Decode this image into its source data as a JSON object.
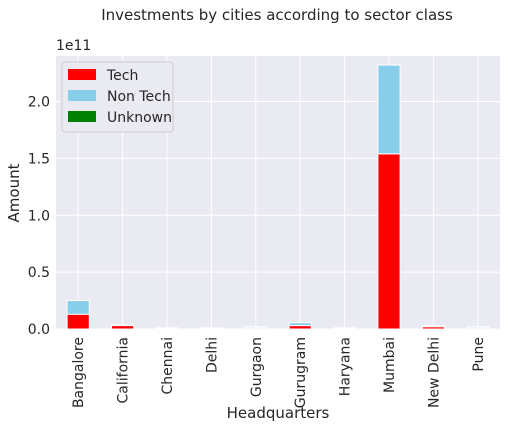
{
  "chart_data": {
    "type": "bar",
    "stacked": true,
    "title": "Investments by cities according to sector class",
    "xlabel": "Headquarters",
    "ylabel": "Amount",
    "y_offset_label": "1e11",
    "y_scale_multiplier": 100000000000,
    "ylim": [
      0,
      2.4
    ],
    "yticks": [
      0.0,
      0.5,
      1.0,
      1.5,
      2.0
    ],
    "ytick_labels": [
      "0.0",
      "0.5",
      "1.0",
      "1.5",
      "2.0"
    ],
    "grid": true,
    "legend_placement": "top-left",
    "categories": [
      "Bangalore",
      "California",
      "Chennai",
      "Delhi",
      "Gurgaon",
      "Gurugram",
      "Haryana",
      "Mumbai",
      "New Delhi",
      "Pune"
    ],
    "series": [
      {
        "name": "Tech",
        "color": "#ff0000",
        "values": [
          0.13,
          0.03,
          0.005,
          0.005,
          0.01,
          0.03,
          0.005,
          1.54,
          0.02,
          0.01
        ]
      },
      {
        "name": "Non Tech",
        "color": "#87ceeb",
        "values": [
          0.12,
          0.005,
          0.005,
          0.005,
          0.01,
          0.025,
          0.005,
          0.78,
          0.01,
          0.01
        ]
      },
      {
        "name": "Unknown",
        "color": "#008000",
        "values": [
          0.0,
          0.0,
          0.0,
          0.0,
          0.0,
          0.0,
          0.0,
          0.0,
          0.0,
          0.0
        ]
      }
    ]
  }
}
